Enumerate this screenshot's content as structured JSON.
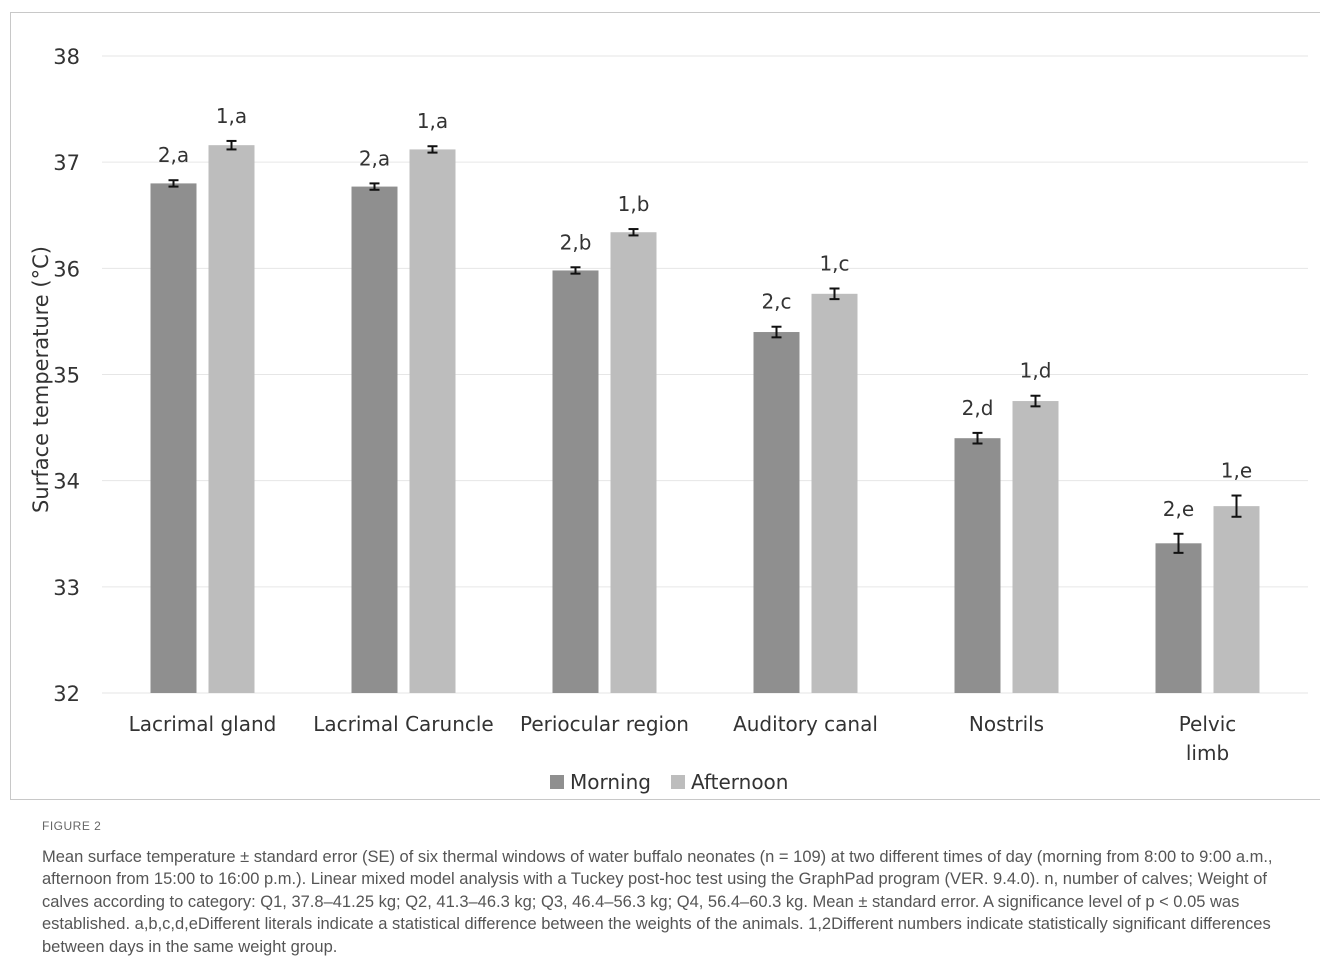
{
  "chart_data": {
    "type": "bar",
    "ylabel": "Surface temperature  (°C)",
    "xlabel": "",
    "ylim": [
      32,
      38
    ],
    "yticks": [
      32,
      33,
      34,
      35,
      36,
      37,
      38
    ],
    "grid": true,
    "legend_position": "bottom",
    "categories": [
      "Lacrimal gland",
      "Lacrimal Caruncle",
      "Periocular region",
      "Auditory canal",
      "Nostrils",
      "Pelvic limb"
    ],
    "series": [
      {
        "name": "Morning",
        "color": "#8f8f8f",
        "values": [
          36.8,
          36.77,
          35.98,
          35.4,
          34.4,
          33.41
        ],
        "errors": [
          0.03,
          0.03,
          0.03,
          0.05,
          0.05,
          0.09
        ],
        "labels": [
          "2,a",
          "2,a",
          "2,b",
          "2,c",
          "2,d",
          "2,e"
        ]
      },
      {
        "name": "Afternoon",
        "color": "#bdbdbd",
        "values": [
          37.16,
          37.12,
          36.34,
          35.76,
          34.75,
          33.76
        ],
        "errors": [
          0.04,
          0.03,
          0.03,
          0.05,
          0.05,
          0.1
        ],
        "labels": [
          "1,a",
          "1,a",
          "1,b",
          "1,c",
          "1,d",
          "1,e"
        ]
      }
    ]
  },
  "legend": {
    "morning": "Morning",
    "afternoon": "Afternoon"
  },
  "caption": {
    "label": "FIGURE 2",
    "text": "Mean surface temperature ± standard error (SE) of six thermal windows of water buffalo neonates (n = 109) at two different times of day (morning from 8:00 to 9:00 a.m., afternoon from 15:00 to 16:00 p.m.). Linear mixed model analysis with a Tuckey post-hoc test using the GraphPad program (VER. 9.4.0). n, number of calves; Weight of calves according to category: Q1, 37.8–41.25 kg; Q2, 41.3–46.3 kg; Q3, 46.4–56.3 kg; Q4, 56.4–60.3 kg. Mean ± standard error. A significance level of p < 0.05 was established. a,b,c,d,eDifferent literals indicate a statistical difference between the weights of the animals. 1,2Different numbers indicate statistically significant differences between days in the same weight group."
  }
}
